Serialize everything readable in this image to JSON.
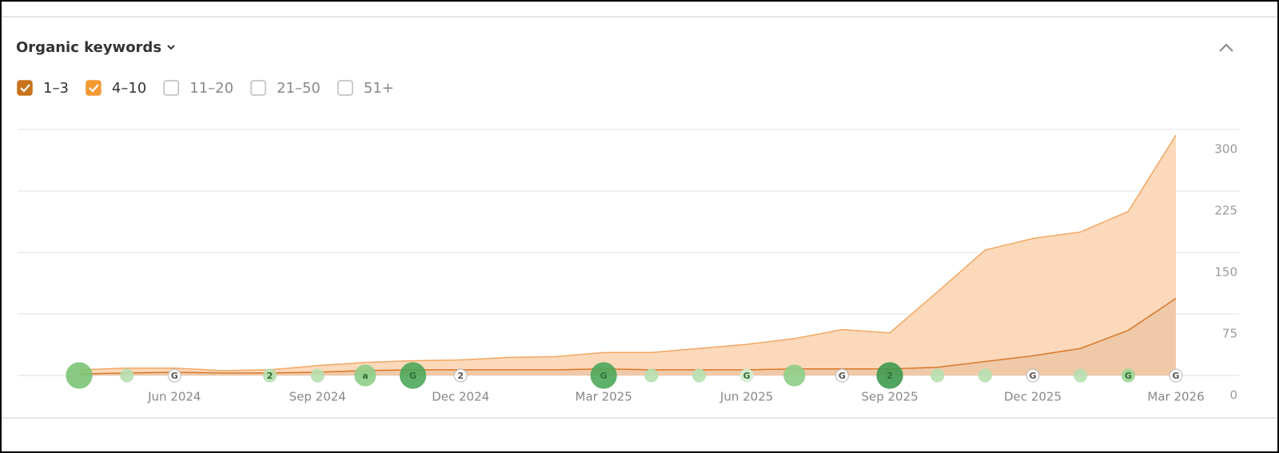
{
  "header": {
    "title": "Organic keywords"
  },
  "chart_data": {
    "type": "stacked-area",
    "categories": [
      null,
      null,
      "Jun 2024",
      null,
      null,
      "Sep 2024",
      null,
      null,
      "Dec 2024",
      null,
      null,
      "Mar 2025",
      null,
      null,
      "Jun 2025",
      null,
      null,
      "Sep 2025",
      null,
      null,
      "Dec 2025",
      null,
      null,
      "Mar 2026"
    ],
    "series": [
      {
        "name": "1–3",
        "color": "#c8731c",
        "checked": true,
        "values": [
          2,
          3,
          4,
          3,
          3,
          4,
          6,
          7,
          7,
          7,
          7,
          8,
          7,
          7,
          7,
          8,
          8,
          8,
          10,
          17,
          24,
          33,
          55,
          94
        ]
      },
      {
        "name": "4–10",
        "color": "#f39a33",
        "checked": true,
        "values": [
          5,
          6,
          5,
          3,
          4,
          8,
          10,
          11,
          12,
          15,
          16,
          20,
          21,
          26,
          31,
          37,
          48,
          44,
          92,
          136,
          143,
          142,
          145,
          199
        ]
      }
    ],
    "extra_legend": [
      {
        "name": "11–20",
        "checked": false
      },
      {
        "name": "21–50",
        "checked": false
      },
      {
        "name": "51+",
        "checked": false
      }
    ],
    "ylim": [
      0,
      300
    ],
    "yticks": [
      0,
      75,
      150,
      225,
      300
    ],
    "grid": true,
    "markers": [
      {
        "index": 0,
        "size": "large",
        "color": "#7cc576"
      },
      {
        "index": 1,
        "size": "small",
        "color": "#b6e0b0"
      },
      {
        "index": 2,
        "size": "small",
        "color": "#ffffff",
        "label": "G"
      },
      {
        "index": 4,
        "size": "small",
        "color": "#b6e0b0",
        "label": "2"
      },
      {
        "index": 5,
        "size": "small",
        "color": "#b6e0b0"
      },
      {
        "index": 6,
        "size": "medium",
        "color": "#8fcf88",
        "label": "a"
      },
      {
        "index": 7,
        "size": "large",
        "color": "#4ea85a",
        "label": "G"
      },
      {
        "index": 8,
        "size": "small",
        "color": "#ffffff",
        "label": "2"
      },
      {
        "index": 11,
        "size": "large",
        "color": "#4ea85a",
        "label": "G"
      },
      {
        "index": 12,
        "size": "small",
        "color": "#b6e0b0"
      },
      {
        "index": 13,
        "size": "small",
        "color": "#b6e0b0"
      },
      {
        "index": 14,
        "size": "small",
        "color": "#d5eed1",
        "label": "G"
      },
      {
        "index": 15,
        "size": "medium",
        "color": "#8fcf88"
      },
      {
        "index": 16,
        "size": "small",
        "color": "#ffffff",
        "label": "G"
      },
      {
        "index": 17,
        "size": "large",
        "color": "#3f9a4f",
        "label": "2"
      },
      {
        "index": 18,
        "size": "small",
        "color": "#b6e0b0"
      },
      {
        "index": 19,
        "size": "small",
        "color": "#b6e0b0"
      },
      {
        "index": 20,
        "size": "small",
        "color": "#ffffff",
        "label": "G"
      },
      {
        "index": 21,
        "size": "small",
        "color": "#b6e0b0"
      },
      {
        "index": 22,
        "size": "small",
        "color": "#9fd698",
        "label": "G"
      },
      {
        "index": 23,
        "size": "small",
        "color": "#ffffff",
        "label": "G"
      }
    ]
  }
}
